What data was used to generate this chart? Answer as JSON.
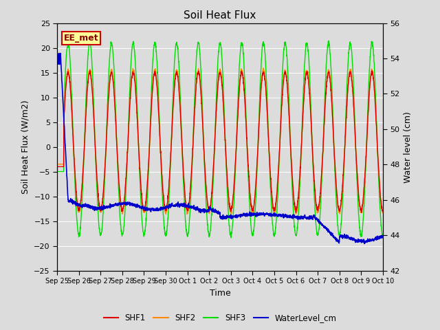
{
  "title": "Soil Heat Flux",
  "xlabel": "Time",
  "ylabel_left": "Soil Heat Flux (W/m2)",
  "ylabel_right": "Water level (cm)",
  "ylim_left": [
    -25,
    25
  ],
  "ylim_right": [
    42,
    56
  ],
  "plot_bg": "#dcdcdc",
  "fig_bg": "#dcdcdc",
  "grid_color": "#ffffff",
  "shf1_color": "#dd0000",
  "shf2_color": "#ff8800",
  "shf3_color": "#00dd00",
  "water_color": "#0000cc",
  "annotation_text": "EE_met",
  "annotation_bg": "#ffff99",
  "annotation_border": "#cc0000",
  "xtick_labels": [
    "Sep 25",
    "Sep 26",
    "Sep 27",
    "Sep 28",
    "Sep 29",
    "Sep 30",
    "Oct 1",
    "Oct 2",
    "Oct 3",
    "Oct 4",
    "Oct 5",
    "Oct 6",
    "Oct 7",
    "Oct 8",
    "Oct 9",
    "Oct 10"
  ],
  "yticks_left": [
    -25,
    -20,
    -15,
    -10,
    -5,
    0,
    5,
    10,
    15,
    20,
    25
  ],
  "yticks_right": [
    42,
    44,
    46,
    48,
    50,
    52,
    54,
    56
  ]
}
